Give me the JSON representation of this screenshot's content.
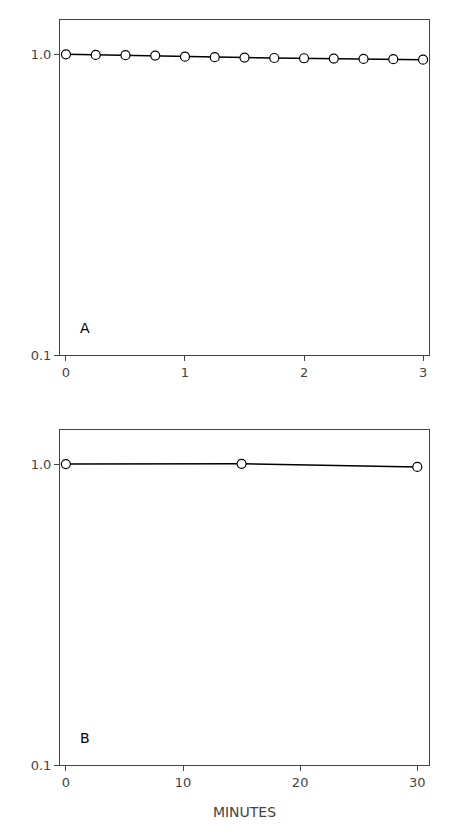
{
  "chart_data": [
    {
      "type": "line",
      "x": [
        0,
        0.25,
        0.5,
        0.75,
        1.0,
        1.25,
        1.5,
        1.75,
        2.0,
        2.25,
        2.5,
        2.75,
        3.0
      ],
      "values": [
        1.0,
        0.995,
        0.993,
        0.99,
        0.982,
        0.978,
        0.975,
        0.972,
        0.97,
        0.968,
        0.965,
        0.963,
        0.96
      ],
      "yerr": [
        0.0,
        0.0,
        0.0,
        0.0,
        0.018,
        0.012,
        0.015,
        0.0,
        0.0,
        0.0,
        0.01,
        0.0,
        0.008
      ],
      "xlim": [
        -0.05,
        3.05
      ],
      "xticks": [
        0,
        1,
        2,
        3
      ],
      "ylim": [
        0.1,
        1.3
      ],
      "yticks": [
        0.1,
        {
          "value": 1.0,
          "label": "1.0"
        }
      ],
      "log": "y",
      "grid": false,
      "color": "#000000",
      "marker": "circle",
      "annotations": [
        "A"
      ]
    },
    {
      "type": "line",
      "x": [
        0,
        15,
        30
      ],
      "values": [
        1.0,
        1.002,
        0.978
      ],
      "yerr": [
        0.0,
        0.0,
        0.012
      ],
      "xlim": [
        -0.5,
        31
      ],
      "xticks": [
        0,
        10,
        20,
        30
      ],
      "ylim": [
        0.1,
        1.3
      ],
      "yticks": [
        0.1,
        {
          "value": 1.0,
          "label": "1.0"
        }
      ],
      "log": "y",
      "grid": false,
      "color": "#000000",
      "marker": "circle",
      "annotations": [
        "B"
      ],
      "x_label": "MINUTES"
    }
  ]
}
